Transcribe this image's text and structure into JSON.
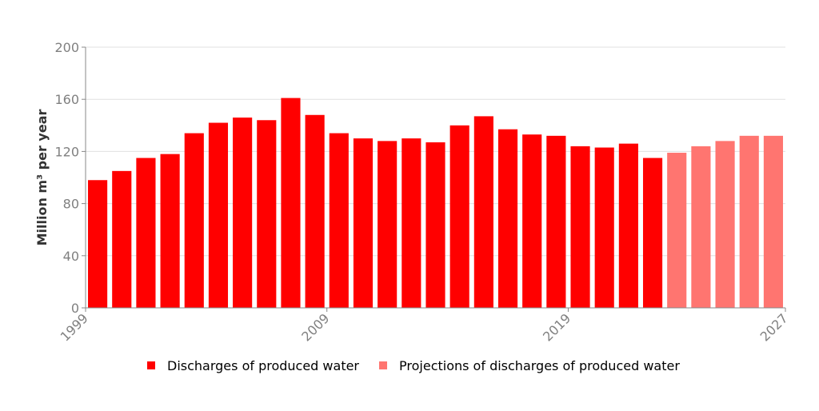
{
  "chart_data": {
    "type": "bar",
    "title": "",
    "xlabel": "",
    "ylabel": "Million m³ per year",
    "ylim": [
      0,
      200
    ],
    "yticks": [
      0,
      40,
      80,
      120,
      160,
      200
    ],
    "xtick_labels": [
      "1999",
      "2009",
      "2019",
      "2027"
    ],
    "grid": true,
    "legend_position": "bottom",
    "categories": [
      "1999",
      "2000",
      "2001",
      "2002",
      "2003",
      "2004",
      "2005",
      "2006",
      "2007",
      "2008",
      "2009",
      "2010",
      "2011",
      "2012",
      "2013",
      "2014",
      "2015",
      "2016",
      "2017",
      "2018",
      "2019",
      "2020",
      "2021",
      "2022",
      "2023",
      "2024",
      "2025",
      "2026",
      "2027"
    ],
    "series": [
      {
        "name": "Discharges of produced water",
        "color": "#ff0000",
        "values": [
          98,
          105,
          115,
          118,
          134,
          142,
          146,
          144,
          161,
          148,
          134,
          130,
          128,
          130,
          127,
          140,
          147,
          137,
          133,
          132,
          124,
          123,
          126,
          115,
          null,
          null,
          null,
          null,
          null
        ]
      },
      {
        "name": "Projections of discharges of produced water",
        "color": "#ff7570",
        "values": [
          null,
          null,
          null,
          null,
          null,
          null,
          null,
          null,
          null,
          null,
          null,
          null,
          null,
          null,
          null,
          null,
          null,
          null,
          null,
          null,
          null,
          null,
          null,
          null,
          119,
          124,
          128,
          132,
          132
        ]
      }
    ]
  }
}
